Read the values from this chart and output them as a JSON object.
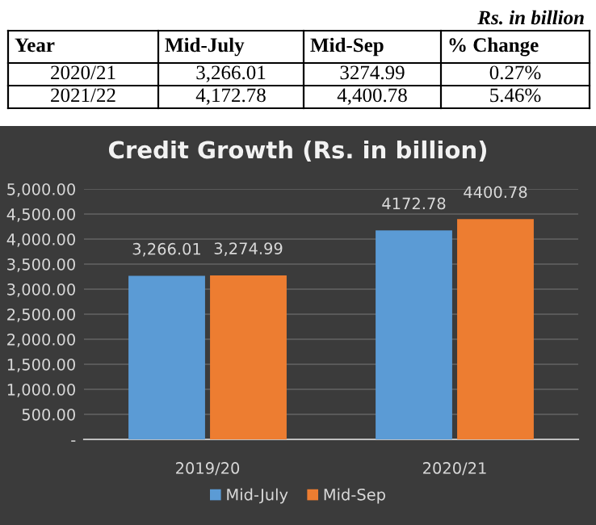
{
  "chart_data": {
    "type": "bar",
    "title": "Credit Growth (Rs. in billion)",
    "categories": [
      "2019/20",
      "2020/21"
    ],
    "series": [
      {
        "name": "Mid-July",
        "color": "#5b9bd5",
        "values": [
          3266.01,
          4172.78
        ],
        "value_labels": [
          "3,266.01",
          "4172.78"
        ]
      },
      {
        "name": "Mid-Sep",
        "color": "#ed7d31",
        "values": [
          3274.99,
          4400.78
        ],
        "value_labels": [
          "3,274.99",
          "4400.78"
        ]
      }
    ],
    "ylim": [
      0,
      5000
    ],
    "yticks": [
      {
        "value": 0,
        "label": "-"
      },
      {
        "value": 500,
        "label": "500.00"
      },
      {
        "value": 1000,
        "label": "1,000.00"
      },
      {
        "value": 1500,
        "label": "1,500.00"
      },
      {
        "value": 2000,
        "label": "2,000.00"
      },
      {
        "value": 2500,
        "label": "2,500.00"
      },
      {
        "value": 3000,
        "label": "3,000.00"
      },
      {
        "value": 3500,
        "label": "3,500.00"
      },
      {
        "value": 4000,
        "label": "4,000.00"
      },
      {
        "value": 4500,
        "label": "4,500.00"
      },
      {
        "value": 5000,
        "label": "5,000.00"
      }
    ],
    "grid": "y",
    "legend": "bottom",
    "annotations": [
      "Rs. in billion",
      "Year",
      "Mid-July",
      "Mid-Sep",
      "% Change",
      "2020/21",
      "3,266.01",
      "3274.99",
      "0.27%",
      "2021/22",
      "4,172.78",
      "4,400.78",
      "5.46%"
    ]
  }
}
